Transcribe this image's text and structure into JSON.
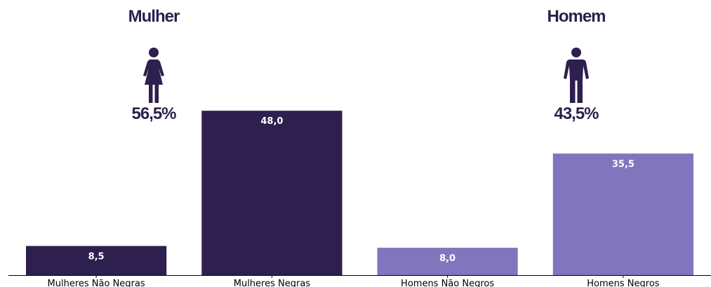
{
  "groups": {
    "female": {
      "label": "Mulher",
      "percent": "56,5%",
      "icon": "female-icon",
      "color": "#2d1f4e"
    },
    "male": {
      "label": "Homem",
      "percent": "43,5%",
      "icon": "male-icon",
      "color": "#2d1f4e"
    }
  },
  "chart_data": {
    "type": "bar",
    "categories": [
      "Mulheres Não Negras",
      "Mulheres Negras",
      "Homens Não Negros",
      "Homens Negros"
    ],
    "values": [
      8.5,
      48.0,
      8.0,
      35.5
    ],
    "value_labels": [
      "8,5",
      "48,0",
      "8,0",
      "35,5"
    ],
    "colors": [
      "#2d1f4e",
      "#2d1f4e",
      "#8176be",
      "#8176be"
    ],
    "ylim": [
      0,
      65
    ],
    "grid": false,
    "legend": "none"
  }
}
